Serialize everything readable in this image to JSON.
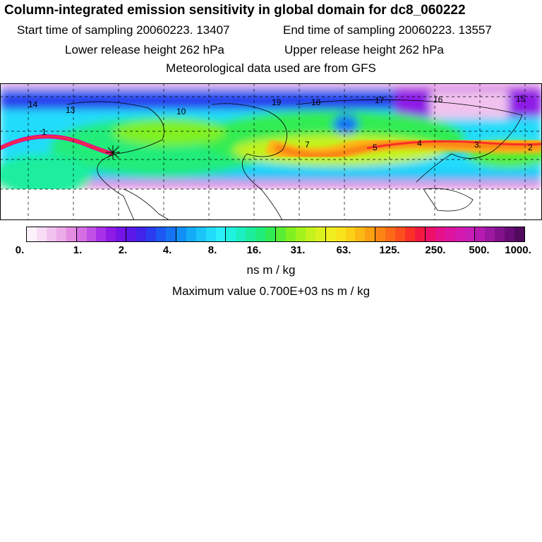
{
  "header": {
    "title": "Column-integrated emission sensitivity in global domain for dc8_060222",
    "start_time": "Start time of sampling 20060223. 13407",
    "end_time": "End time of sampling 20060223. 13557",
    "lower_release": "Lower release height  262 hPa",
    "upper_release": "Upper release height  262 hPa",
    "met_data": "Meteorological data used are from GFS"
  },
  "map": {
    "region_labels": [
      "1",
      "2",
      "3",
      "4",
      "5",
      "7",
      "10",
      "13",
      "14",
      "15",
      "16",
      "17",
      "18",
      "19"
    ],
    "release_marker": "star-cross"
  },
  "colorbar": {
    "tick_labels": [
      "0.",
      "1.",
      "2.",
      "4.",
      "8.",
      "16.",
      "31.",
      "63.",
      "125.",
      "250.",
      "500.",
      "1000."
    ],
    "colors": [
      "#fdf2fc",
      "#f8dcf5",
      "#f2c2ee",
      "#ecaae7",
      "#e48ce2",
      "#d56ee4",
      "#c050e6",
      "#a830e8",
      "#8e1ae6",
      "#7414e6",
      "#5a18e8",
      "#4024ea",
      "#2a3cee",
      "#1c58f2",
      "#1474f4",
      "#1090f6",
      "#14acf8",
      "#1cc4fa",
      "#22dcfb",
      "#2aeef8",
      "#20f2e2",
      "#1cf0c2",
      "#1cee9e",
      "#20ec7a",
      "#30ec52",
      "#58ee34",
      "#80f020",
      "#a4f21c",
      "#c4f21c",
      "#dcf020",
      "#f0ee20",
      "#f8e21c",
      "#fcd016",
      "#fcb814",
      "#fca012",
      "#fc8414",
      "#fc6a18",
      "#fc4e1e",
      "#fa3028",
      "#f41840",
      "#ec1068",
      "#e6108a",
      "#de14a0",
      "#d41aae",
      "#c81cb6",
      "#b61ab0",
      "#9c18a0",
      "#82128c",
      "#6a0c76",
      "#520a5e"
    ]
  },
  "units": "ns m / kg",
  "max_value": "Maximum value  0.700E+03 ns m / kg"
}
